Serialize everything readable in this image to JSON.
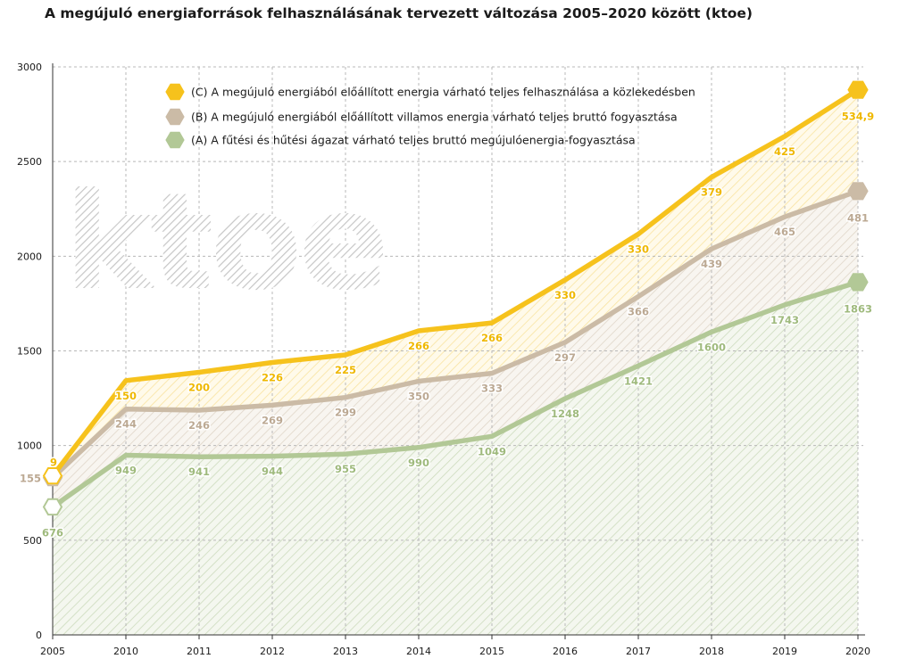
{
  "title": "A megújuló energiaforrások felhasználásának tervezett változása 2005–2020 között (ktoe)",
  "watermark": "ktoe",
  "colors": {
    "C": "#f6c21c",
    "B": "#cbbba6",
    "A": "#b2c896",
    "grid": "#b8b8b8",
    "axis": "#333333"
  },
  "chart_data": {
    "type": "area",
    "title": "A megújuló energiaforrások felhasználásának tervezett változása 2005–2020 között (ktoe)",
    "ylim": [
      0,
      3000
    ],
    "y_ticks": [
      0,
      500,
      1000,
      1500,
      2000,
      2500,
      3000
    ],
    "grid": true,
    "legend_position": "top",
    "stacked": true,
    "categories": [
      "2005",
      "2010",
      "2011",
      "2012",
      "2013",
      "2014",
      "2015",
      "2016",
      "2017",
      "2018",
      "2019",
      "2020"
    ],
    "series": [
      {
        "key": "C",
        "name": "(C) A megújuló energiából előállított energia várható teljes felhasználása a közlekedésben",
        "labels": [
          "9",
          "150",
          "200",
          "226",
          "225",
          "266",
          "266",
          "330",
          "330",
          "379",
          "425",
          "534,9"
        ],
        "values": [
          9,
          150,
          200,
          226,
          225,
          266,
          266,
          330,
          330,
          379,
          425,
          534.9
        ],
        "cumulative": [
          840,
          1343,
          1387,
          1439,
          1479,
          1606,
          1648,
          1875,
          2117,
          2418,
          2633,
          2879
        ]
      },
      {
        "key": "B",
        "name": "(B) A megújuló energiából előállított villamos energia várható teljes bruttó fogyasztása",
        "labels": [
          "155",
          "244",
          "246",
          "269",
          "299",
          "350",
          "333",
          "297",
          "366",
          "439",
          "465",
          "481"
        ],
        "values": [
          155,
          244,
          246,
          269,
          299,
          350,
          333,
          297,
          366,
          439,
          465,
          481
        ],
        "cumulative": [
          831,
          1193,
          1187,
          1213,
          1254,
          1340,
          1382,
          1545,
          1787,
          2039,
          2208,
          2344
        ]
      },
      {
        "key": "A",
        "name": "(A) A fűtési és hűtési ágazat várható teljes bruttó megújulóenergia-fogyasztása",
        "labels": [
          "676",
          "949",
          "941",
          "944",
          "955",
          "990",
          "1049",
          "1248",
          "1421",
          "1600",
          "1743",
          "1863"
        ],
        "values": [
          676,
          949,
          941,
          944,
          955,
          990,
          1049,
          1248,
          1421,
          1600,
          1743,
          1863
        ],
        "cumulative": [
          676,
          949,
          941,
          944,
          955,
          990,
          1049,
          1248,
          1421,
          1600,
          1743,
          1863
        ]
      }
    ]
  }
}
